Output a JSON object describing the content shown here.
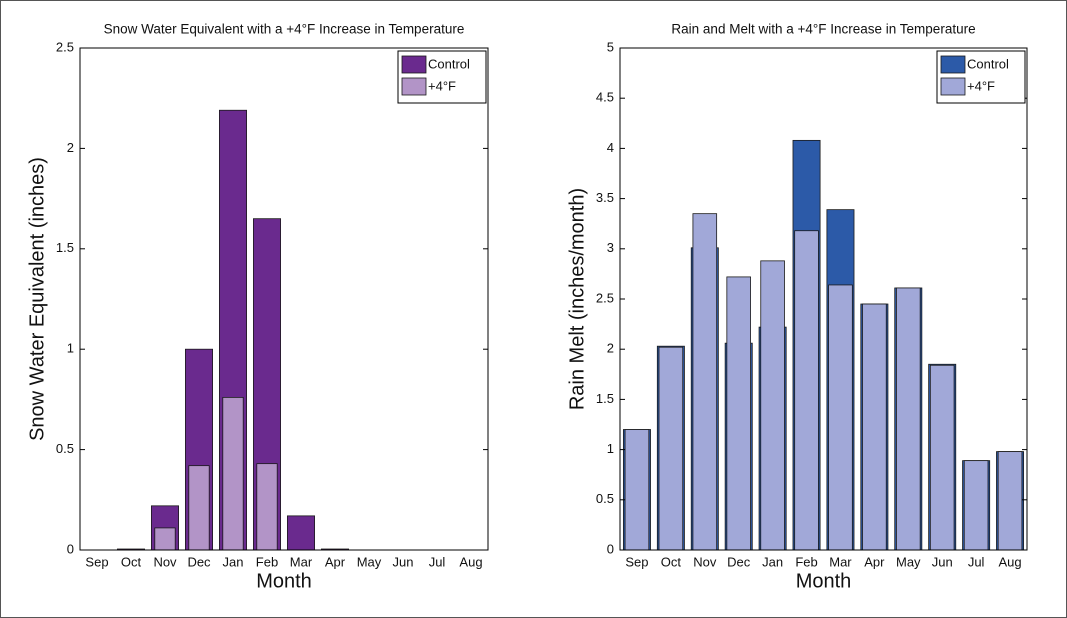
{
  "chart_data": [
    {
      "type": "bar",
      "title": "Snow Water Equivalent with a +4°F Increase in Temperature",
      "xlabel": "Month",
      "ylabel": "Snow Water Equivalent (inches)",
      "categories": [
        "Sep",
        "Oct",
        "Nov",
        "Dec",
        "Jan",
        "Feb",
        "Mar",
        "Apr",
        "May",
        "Jun",
        "Jul",
        "Aug"
      ],
      "series": [
        {
          "name": "Control",
          "color": "#6a2a8e",
          "values": [
            0,
            0.005,
            0.22,
            1.0,
            2.19,
            1.65,
            0.17,
            0.005,
            0,
            0,
            0,
            0
          ]
        },
        {
          "name": "+4°F",
          "color": "#b294c7",
          "values": [
            0,
            0,
            0.11,
            0.42,
            0.76,
            0.43,
            0,
            0,
            0,
            0,
            0,
            0
          ]
        }
      ],
      "ylim": [
        0,
        2.5
      ],
      "yticks": [
        0,
        0.5,
        1,
        1.5,
        2,
        2.5
      ],
      "legend": "upper right"
    },
    {
      "type": "bar",
      "title": "Rain and Melt with a +4°F Increase in Temperature",
      "xlabel": "Month",
      "ylabel": "Rain Melt (inches/month)",
      "categories": [
        "Sep",
        "Oct",
        "Nov",
        "Dec",
        "Jan",
        "Feb",
        "Mar",
        "Apr",
        "May",
        "Jun",
        "Jul",
        "Aug"
      ],
      "series": [
        {
          "name": "Control",
          "color": "#2c5aa8",
          "values": [
            1.2,
            2.03,
            3.01,
            2.06,
            2.22,
            4.08,
            3.39,
            2.45,
            2.61,
            1.85,
            0.89,
            0.98
          ]
        },
        {
          "name": "+4°F",
          "color": "#a1a8d8",
          "values": [
            1.2,
            2.02,
            3.35,
            2.72,
            2.88,
            3.18,
            2.64,
            2.45,
            2.61,
            1.84,
            0.89,
            0.98
          ]
        }
      ],
      "ylim": [
        0,
        5
      ],
      "yticks": [
        0,
        0.5,
        1,
        1.5,
        2,
        2.5,
        3,
        3.5,
        4,
        4.5,
        5
      ],
      "legend": "upper right"
    }
  ]
}
